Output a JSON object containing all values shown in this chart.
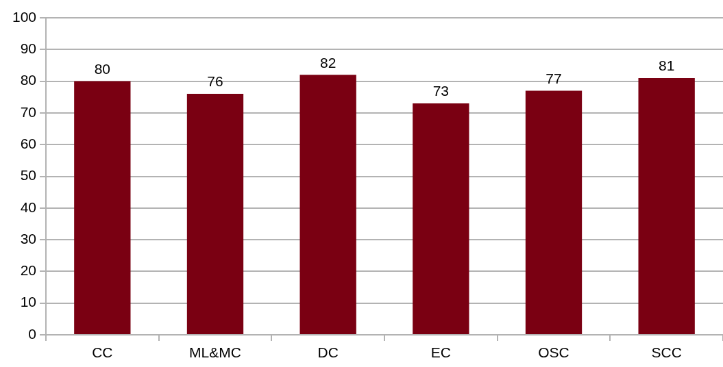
{
  "chart_data": {
    "type": "bar",
    "categories": [
      "CC",
      "ML&MC",
      "DC",
      "EC",
      "OSC",
      "SCC"
    ],
    "values": [
      80,
      76,
      82,
      73,
      77,
      81
    ],
    "color": "#7a0012",
    "ylim": [
      0,
      100
    ],
    "yticks": [
      0,
      10,
      20,
      30,
      40,
      50,
      60,
      70,
      80,
      90,
      100
    ],
    "grid": "y",
    "data_labels": true
  }
}
